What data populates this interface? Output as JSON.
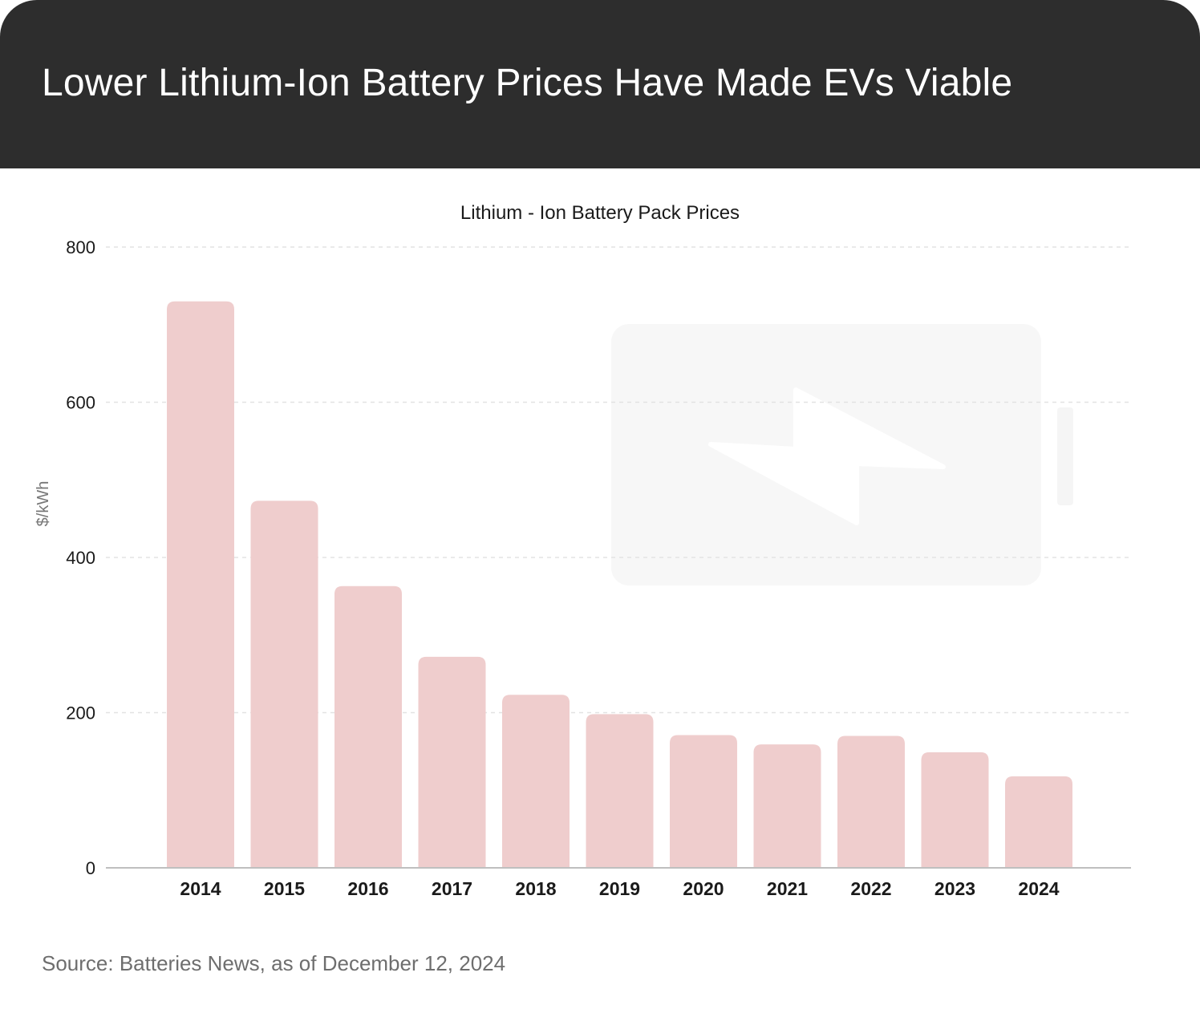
{
  "header": {
    "title": "Lower Lithium-Ion Battery Prices Have Made EVs Viable"
  },
  "footer": {
    "source": "Source: Batteries News, as of December 12, 2024"
  },
  "chart_data": {
    "type": "bar",
    "title": "Lithium - Ion Battery Pack Prices",
    "xlabel": "",
    "ylabel": "$/kWh",
    "categories": [
      "2014",
      "2015",
      "2016",
      "2017",
      "2018",
      "2019",
      "2020",
      "2021",
      "2022",
      "2023",
      "2024"
    ],
    "values": [
      730,
      473,
      363,
      272,
      223,
      198,
      171,
      159,
      170,
      149,
      118
    ],
    "ylim": [
      0,
      800
    ],
    "yticks": [
      "0",
      "200",
      "400",
      "600",
      "800"
    ],
    "grid": true,
    "bar_color": "#efcdcd",
    "watermark_icon": "battery-charging-icon"
  }
}
